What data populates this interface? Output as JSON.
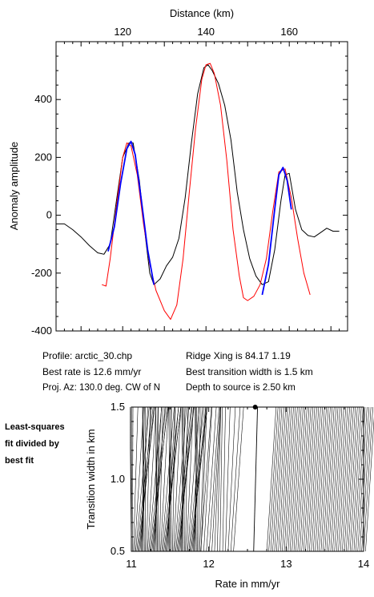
{
  "chart_data": [
    {
      "type": "line",
      "xlabel": "Distance (km)",
      "ylabel": "Anomaly amplitude",
      "xlim": [
        104,
        174
      ],
      "ylim": [
        -400,
        600
      ],
      "x_ticks": [
        120,
        140,
        160
      ],
      "y_ticks": [
        -400,
        -200,
        0,
        200,
        400
      ],
      "series": [
        {
          "role": "observed",
          "color": "#000000",
          "x": [
            104,
            106,
            108,
            110,
            112,
            114,
            115.5,
            117,
            118.5,
            120,
            121.5,
            122.5,
            124,
            125.5,
            126.5,
            127.5,
            129,
            130.5,
            132,
            133.5,
            135,
            136.5,
            138,
            139.5,
            140.5,
            141.5,
            143,
            144.5,
            146,
            147.5,
            149,
            150.5,
            152,
            153.5,
            155,
            156.5,
            158,
            159,
            160,
            161.5,
            163,
            164.5,
            166,
            167.5,
            169,
            170.5,
            172
          ],
          "y": [
            -30,
            -30,
            -50,
            -75,
            -105,
            -130,
            -135,
            -100,
            50,
            200,
            250,
            250,
            120,
            -80,
            -200,
            -240,
            -220,
            -175,
            -145,
            -80,
            60,
            250,
            420,
            510,
            520,
            500,
            455,
            380,
            260,
            80,
            -50,
            -150,
            -210,
            -240,
            -230,
            -120,
            50,
            140,
            145,
            20,
            -50,
            -70,
            -75,
            -60,
            -45,
            -55,
            -55
          ]
        },
        {
          "role": "model",
          "color": "#ff0000",
          "x": [
            115,
            116,
            117,
            118.5,
            120,
            121,
            122,
            123.5,
            125,
            126.5,
            128,
            130,
            131.5,
            133,
            134.5,
            136,
            137.5,
            139,
            140,
            141,
            142,
            143.5,
            145,
            146.5,
            148,
            149,
            150,
            151.5,
            153,
            154.5,
            156,
            157.5,
            159,
            160.5,
            162,
            163.5,
            165
          ],
          "y": [
            -240,
            -245,
            -150,
            30,
            200,
            250,
            240,
            140,
            -30,
            -170,
            -260,
            -330,
            -360,
            -310,
            -150,
            80,
            300,
            470,
            520,
            525,
            490,
            380,
            190,
            -50,
            -210,
            -285,
            -295,
            -280,
            -240,
            -150,
            10,
            150,
            160,
            60,
            -80,
            -200,
            -275
          ]
        },
        {
          "role": "fit-window",
          "color": "#0000ff",
          "x": [
            116.5,
            118,
            119.5,
            121,
            122,
            123,
            124.5,
            126,
            127.5
          ],
          "y": [
            -125,
            -40,
            110,
            230,
            255,
            210,
            50,
            -120,
            -240
          ]
        },
        {
          "role": "fit-window",
          "color": "#0000ff",
          "x": [
            153.5,
            155,
            156.5,
            157.5,
            158.5,
            159.5,
            160.5
          ],
          "y": [
            -275,
            -170,
            20,
            140,
            165,
            120,
            20
          ]
        }
      ]
    },
    {
      "type": "contour",
      "xlabel": "Rate in mm/yr",
      "ylabel": "Transition width in km",
      "xlim": [
        11,
        14
      ],
      "ylim": [
        0.5,
        1.5
      ],
      "x_ticks": [
        11,
        12,
        13,
        14
      ],
      "y_ticks": [
        0.5,
        1.0,
        1.5
      ],
      "best_fit": {
        "x": 12.6,
        "y": 1.5
      }
    }
  ],
  "info": {
    "profile": "Profile: arctic_30.chp",
    "ridge": "Ridge Xing is 84.17 1.19",
    "rate": "Best rate is 12.6 mm/yr",
    "transition": "Best transition width is 1.5 km",
    "azimuth": "Proj. Az: 130.0 deg. CW of N",
    "depth": "Depth to source is   2.50 km"
  },
  "side_note": {
    "line1": "Least-squares",
    "line2": "fit divided by",
    "line3": "best fit"
  }
}
